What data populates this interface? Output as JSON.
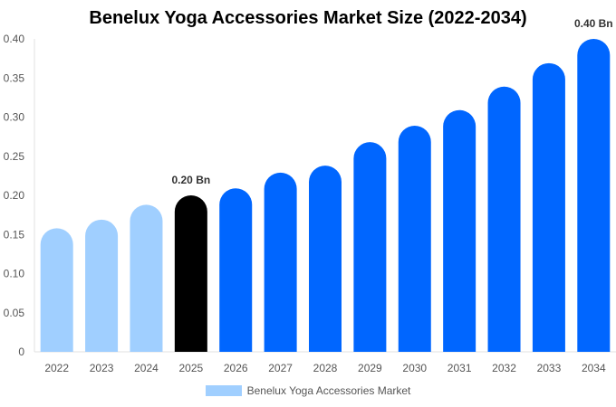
{
  "chart_data": {
    "type": "bar",
    "title": "Benelux Yoga Accessories Market Size (2022-2034)",
    "categories": [
      "2022",
      "2023",
      "2024",
      "2025",
      "2026",
      "2027",
      "2028",
      "2029",
      "2030",
      "2031",
      "2032",
      "2033",
      "2034"
    ],
    "series": [
      {
        "name": "Benelux Yoga Accessories Market",
        "values": [
          0.158,
          0.169,
          0.188,
          0.2,
          0.209,
          0.229,
          0.238,
          0.268,
          0.289,
          0.309,
          0.339,
          0.369,
          0.4
        ]
      }
    ],
    "bar_colors": [
      "#a0cfff",
      "#a0cfff",
      "#a0cfff",
      "#000000",
      "#0066ff",
      "#0066ff",
      "#0066ff",
      "#0066ff",
      "#0066ff",
      "#0066ff",
      "#0066ff",
      "#0066ff",
      "#0066ff"
    ],
    "data_labels": {
      "2025": "0.20 Bn",
      "2034": "0.40 Bn"
    },
    "yticks": [
      "0",
      "0.05",
      "0.10",
      "0.15",
      "0.20",
      "0.25",
      "0.30",
      "0.35",
      "0.40"
    ],
    "ylim": [
      0,
      0.4
    ],
    "xlabel": "",
    "ylabel": "",
    "grid": false,
    "legend": "bottom",
    "legend_color": "#a0cfff"
  }
}
